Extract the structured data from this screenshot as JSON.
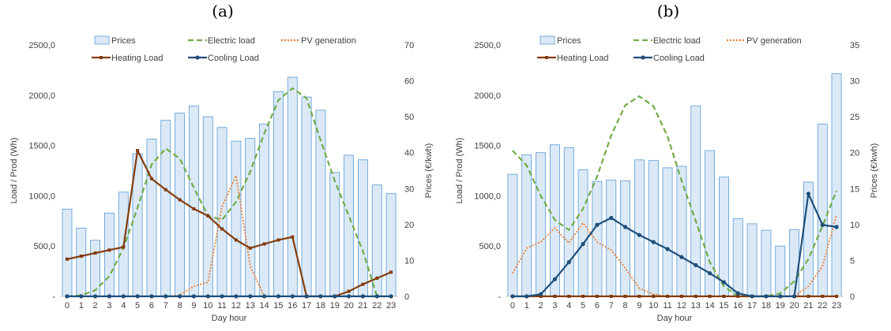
{
  "chart_data": [
    {
      "panel_label": "(a)",
      "type": "bar",
      "xlabel": "Day hour",
      "ylabel_left": "Load / Prod (Wh)",
      "ylabel_right": "Prices (€/kwh)",
      "categories": [
        "0",
        "1",
        "2",
        "3",
        "4",
        "5",
        "6",
        "7",
        "8",
        "9",
        "10",
        "11",
        "12",
        "13",
        "14",
        "15",
        "16",
        "17",
        "18",
        "19",
        "20",
        "21",
        "22",
        "23"
      ],
      "y_left": {
        "min": 0,
        "max": 2500,
        "ticks": [
          "-",
          "500,0",
          "1000,0",
          "1500,0",
          "2000,0",
          "2500,0"
        ]
      },
      "y_right": {
        "min": 0,
        "max": 70,
        "ticks": [
          "0",
          "10",
          "20",
          "30",
          "40",
          "50",
          "60",
          "70"
        ]
      },
      "legend": [
        "Prices",
        "Electric load",
        "PV generation",
        "Heating Load",
        "Cooling Load"
      ],
      "series": [
        {
          "name": "Prices",
          "kind": "bar",
          "axis": "right",
          "color": "#dbe9f7",
          "values": [
            24.3,
            19.0,
            15.6,
            23.2,
            29.0,
            39.7,
            43.8,
            49.0,
            51.0,
            53.0,
            50.0,
            47.0,
            43.2,
            44.0,
            48.0,
            57.0,
            61.0,
            55.5,
            51.8,
            34.5,
            39.3,
            38.0,
            31.0,
            28.6
          ]
        },
        {
          "name": "Electric load",
          "kind": "line",
          "axis": "left",
          "color": "#70ad47",
          "values": [
            0,
            10,
            60,
            200,
            480,
            880,
            1310,
            1470,
            1370,
            1080,
            800,
            760,
            940,
            1240,
            1620,
            1950,
            2070,
            1970,
            1550,
            1150,
            800,
            450,
            0,
            0
          ]
        },
        {
          "name": "PV generation",
          "kind": "line",
          "axis": "left",
          "color": "#ed7d31",
          "values": [
            0,
            0,
            0,
            0,
            0,
            0,
            0,
            0,
            10,
            100,
            140,
            890,
            1200,
            300,
            0,
            0,
            0,
            0,
            0,
            0,
            0,
            0,
            0,
            0
          ]
        },
        {
          "name": "Heating Load",
          "kind": "line",
          "axis": "left",
          "color": "#843c0c",
          "values": [
            370,
            400,
            430,
            460,
            490,
            1450,
            1170,
            1060,
            960,
            870,
            800,
            670,
            560,
            480,
            520,
            560,
            590,
            0,
            0,
            0,
            50,
            120,
            180,
            240
          ]
        },
        {
          "name": "Cooling Load",
          "kind": "line",
          "axis": "left",
          "color": "#1f4e79",
          "values": [
            0,
            0,
            0,
            0,
            0,
            0,
            0,
            0,
            0,
            0,
            0,
            0,
            0,
            0,
            0,
            0,
            0,
            0,
            0,
            0,
            0,
            0,
            0,
            0
          ]
        }
      ]
    },
    {
      "panel_label": "(b)",
      "type": "bar",
      "xlabel": "Day hour",
      "ylabel_left": "Load / Prod (Wh)",
      "ylabel_right": "Prices (€/kwh)",
      "categories": [
        "0",
        "1",
        "2",
        "3",
        "4",
        "5",
        "6",
        "7",
        "8",
        "9",
        "10",
        "11",
        "12",
        "13",
        "14",
        "15",
        "16",
        "17",
        "18",
        "19",
        "20",
        "21",
        "22",
        "23"
      ],
      "y_left": {
        "min": 0,
        "max": 2500,
        "ticks": [
          "-",
          "500,0",
          "1000,0",
          "1500,0",
          "2000,0",
          "2500,0"
        ]
      },
      "y_right": {
        "min": 0,
        "max": 35,
        "ticks": [
          "0",
          "5",
          "10",
          "15",
          "20",
          "25",
          "30",
          "35"
        ]
      },
      "legend": [
        "Prices",
        "Electric load",
        "PV generation",
        "Heating Load",
        "Cooling Load"
      ],
      "series": [
        {
          "name": "Prices",
          "kind": "bar",
          "axis": "right",
          "color": "#dbe9f7",
          "values": [
            17.0,
            19.7,
            20.0,
            21.1,
            20.7,
            17.6,
            16.0,
            16.2,
            16.1,
            19.0,
            18.9,
            17.9,
            18.1,
            26.5,
            20.3,
            16.6,
            10.8,
            10.1,
            9.2,
            7.0,
            9.3,
            15.9,
            24.0,
            31.0
          ]
        },
        {
          "name": "Electric load",
          "kind": "line",
          "axis": "left",
          "color": "#70ad47",
          "values": [
            1450,
            1300,
            1000,
            760,
            660,
            870,
            1190,
            1600,
            1900,
            1990,
            1890,
            1590,
            1150,
            750,
            340,
            100,
            0,
            0,
            0,
            30,
            150,
            370,
            700,
            1050
          ]
        },
        {
          "name": "PV generation",
          "kind": "line",
          "axis": "left",
          "color": "#ed7d31",
          "values": [
            230,
            480,
            540,
            680,
            530,
            730,
            540,
            460,
            280,
            80,
            20,
            0,
            0,
            0,
            0,
            0,
            0,
            0,
            0,
            0,
            0,
            100,
            300,
            810
          ]
        },
        {
          "name": "Heating Load",
          "kind": "line",
          "axis": "left",
          "color": "#843c0c",
          "values": [
            0,
            0,
            0,
            0,
            0,
            0,
            0,
            0,
            0,
            0,
            0,
            0,
            0,
            0,
            0,
            0,
            0,
            0,
            0,
            0,
            0,
            0,
            0,
            0
          ]
        },
        {
          "name": "Cooling Load",
          "kind": "line",
          "axis": "left",
          "color": "#1f4e79",
          "values": [
            0,
            0,
            20,
            170,
            340,
            520,
            710,
            780,
            690,
            610,
            540,
            470,
            390,
            310,
            230,
            140,
            30,
            0,
            0,
            0,
            0,
            1020,
            710,
            690
          ]
        }
      ]
    }
  ]
}
